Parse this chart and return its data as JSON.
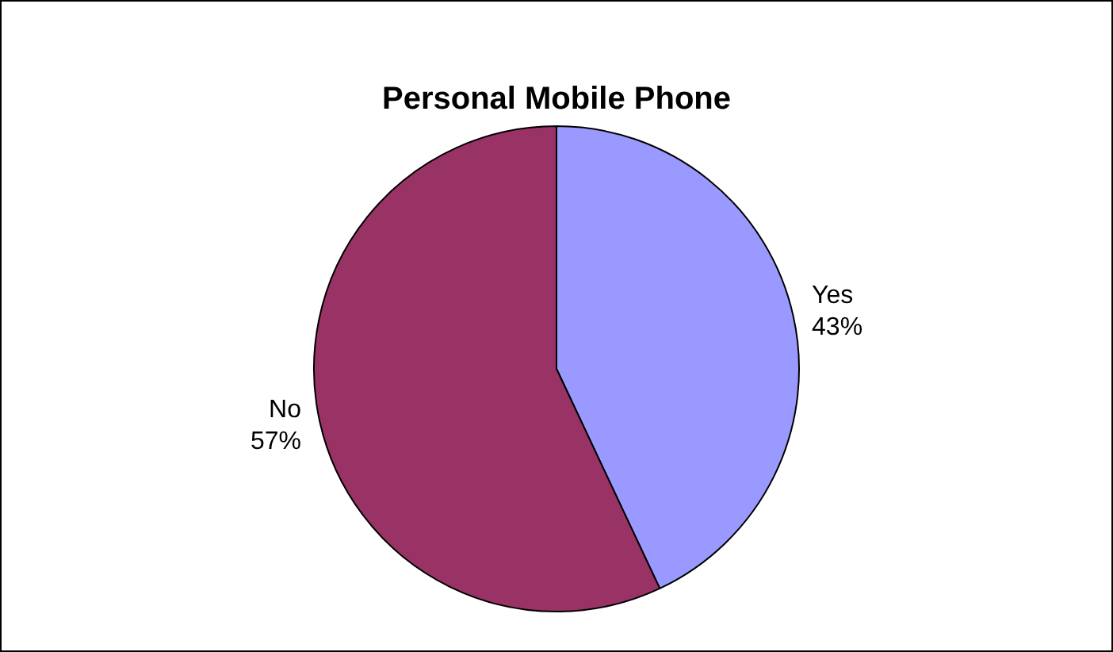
{
  "chart_data": {
    "type": "pie",
    "title": "Personal Mobile Phone",
    "categories": [
      "Yes",
      "No"
    ],
    "values": [
      43,
      57
    ],
    "colors": [
      "#9999ff",
      "#993366"
    ],
    "value_labels": [
      "43%",
      "57%"
    ],
    "legend": false
  }
}
